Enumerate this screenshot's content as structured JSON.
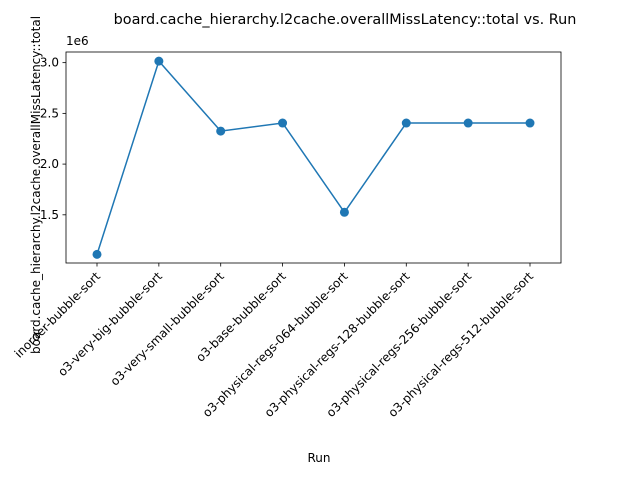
{
  "chart_data": {
    "type": "line",
    "title": "board.cache_hierarchy.l2cache.overallMissLatency::total vs. Run",
    "xlabel": "Run",
    "ylabel": "board.cache_hierarchy.l2cache.overallMissLatency::total",
    "y_offset_label": "1e6",
    "y_scale": 1000000,
    "categories": [
      "inorder-bubble-sort",
      "o3-very-big-bubble-sort",
      "o3-very-small-bubble-sort",
      "o3-base-bubble-sort",
      "o3-physical-regs-064-bubble-sort",
      "o3-physical-regs-128-bubble-sort",
      "o3-physical-regs-256-bubble-sort",
      "o3-physical-regs-512-bubble-sort"
    ],
    "values": [
      1110000,
      3015000,
      2325000,
      2405000,
      1525000,
      2405000,
      2405000,
      2405000
    ],
    "ylim": [
      1025000,
      3105000
    ],
    "yticks": [
      1500000,
      2000000,
      2500000,
      3000000
    ],
    "ytick_labels": [
      "1.5",
      "2.0",
      "2.5",
      "3.0"
    ],
    "series_color": "#1f77b4",
    "grid": false,
    "legend": "none"
  }
}
